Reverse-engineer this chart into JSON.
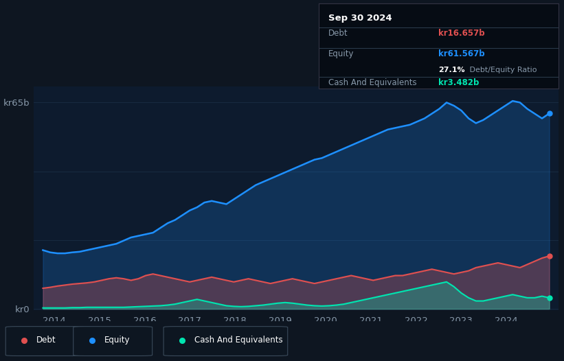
{
  "bg_color": "#0e1621",
  "plot_bg_color": "#0d1b2e",
  "equity_color": "#1e90ff",
  "debt_color": "#e05050",
  "cash_color": "#00e5b0",
  "grid_color": "#1a2d44",
  "text_color": "#8899aa",
  "title_label": "kr65b",
  "zero_label": "kr0",
  "x_ticks": [
    2014,
    2015,
    2016,
    2017,
    2018,
    2019,
    2020,
    2021,
    2022,
    2023,
    2024
  ],
  "tooltip_date": "Sep 30 2024",
  "tooltip_debt_label": "Debt",
  "tooltip_debt_value": "kr16.657b",
  "tooltip_equity_label": "Equity",
  "tooltip_equity_value": "kr61.567b",
  "tooltip_ratio_value": "27.1%",
  "tooltip_ratio_label": " Debt/Equity Ratio",
  "tooltip_cash_label": "Cash And Equivalents",
  "tooltip_cash_value": "kr3.482b",
  "equity_data": [
    18.5,
    17.8,
    17.5,
    17.5,
    17.8,
    18.0,
    18.5,
    19.0,
    19.5,
    20.0,
    20.5,
    21.5,
    22.5,
    23.0,
    23.5,
    24.0,
    25.5,
    27.0,
    28.0,
    29.5,
    31.0,
    32.0,
    33.5,
    34.0,
    33.5,
    33.0,
    34.5,
    36.0,
    37.5,
    39.0,
    40.0,
    41.0,
    42.0,
    43.0,
    44.0,
    45.0,
    46.0,
    47.0,
    47.5,
    48.5,
    49.5,
    50.5,
    51.5,
    52.5,
    53.5,
    54.5,
    55.5,
    56.5,
    57.0,
    57.5,
    58.0,
    59.0,
    60.0,
    61.5,
    63.0,
    65.0,
    64.0,
    62.5,
    60.0,
    58.5,
    59.5,
    61.0,
    62.5,
    64.0,
    65.5,
    65.0,
    63.0,
    61.5,
    60.0,
    61.567
  ],
  "debt_data": [
    6.5,
    6.8,
    7.2,
    7.5,
    7.8,
    8.0,
    8.2,
    8.5,
    9.0,
    9.5,
    9.8,
    9.5,
    9.0,
    9.5,
    10.5,
    11.0,
    10.5,
    10.0,
    9.5,
    9.0,
    8.5,
    9.0,
    9.5,
    10.0,
    9.5,
    9.0,
    8.5,
    9.0,
    9.5,
    9.0,
    8.5,
    8.0,
    8.5,
    9.0,
    9.5,
    9.0,
    8.5,
    8.0,
    8.5,
    9.0,
    9.5,
    10.0,
    10.5,
    10.0,
    9.5,
    9.0,
    9.5,
    10.0,
    10.5,
    10.5,
    11.0,
    11.5,
    12.0,
    12.5,
    12.0,
    11.5,
    11.0,
    11.5,
    12.0,
    13.0,
    13.5,
    14.0,
    14.5,
    14.0,
    13.5,
    13.0,
    14.0,
    15.0,
    16.0,
    16.657
  ],
  "cash_data": [
    0.3,
    0.3,
    0.3,
    0.3,
    0.4,
    0.4,
    0.5,
    0.5,
    0.5,
    0.5,
    0.5,
    0.5,
    0.6,
    0.7,
    0.8,
    0.9,
    1.0,
    1.2,
    1.5,
    2.0,
    2.5,
    3.0,
    2.5,
    2.0,
    1.5,
    1.0,
    0.8,
    0.7,
    0.8,
    1.0,
    1.2,
    1.5,
    1.8,
    2.0,
    1.8,
    1.5,
    1.2,
    1.0,
    0.9,
    1.0,
    1.2,
    1.5,
    2.0,
    2.5,
    3.0,
    3.5,
    4.0,
    4.5,
    5.0,
    5.5,
    6.0,
    6.5,
    7.0,
    7.5,
    8.0,
    8.5,
    7.0,
    5.0,
    3.5,
    2.5,
    2.5,
    3.0,
    3.5,
    4.0,
    4.5,
    4.0,
    3.5,
    3.5,
    4.0,
    3.482
  ]
}
